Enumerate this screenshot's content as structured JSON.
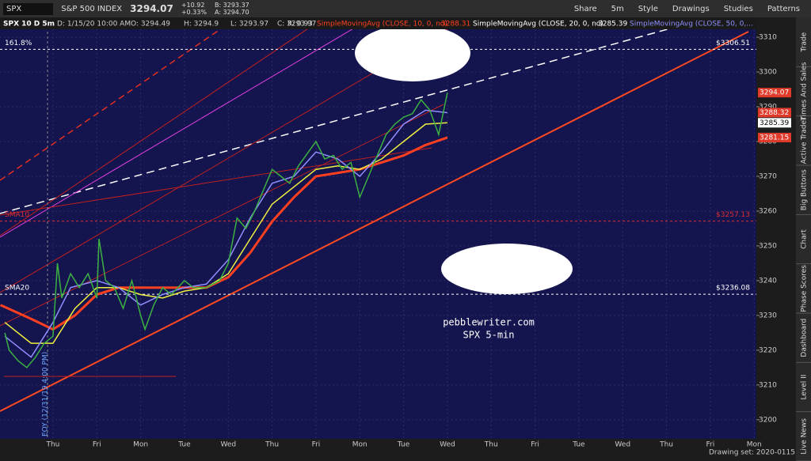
{
  "toolbar": {
    "symbol": "SPX",
    "description": "S&P 500 INDEX",
    "last": "3294.07",
    "change": "+10.92",
    "change_pct": "+0.33%",
    "bid": "B: 3293.37",
    "ask": "A: 3294.70",
    "buttons": [
      "Share",
      "5m",
      "Style",
      "Drawings",
      "Studies",
      "Patterns"
    ]
  },
  "info_bar": {
    "symbol": "SPX 10 D 5m",
    "date": "D: 1/15/20 10:00 AM",
    "open": "O: 3294.49",
    "high": "H: 3294.9",
    "low": "L: 3293.97",
    "close": "C: 3293.97",
    "range": "R: 0.93",
    "sma10_value": "3288.31",
    "sma20_value": "3285.39"
  },
  "side_tabs": [
    "Trade",
    "Times And Sales",
    "Active Trader",
    "Big Buttons",
    "Chart",
    "Phase Scores",
    "Dashboard",
    "Level II",
    "Live News"
  ],
  "footer": {
    "drawing_set": "Drawing set: 2020-0115"
  },
  "chart_data": {
    "type": "line",
    "watermark": [
      "pebblewriter.com",
      "SPX 5-min"
    ],
    "eoy_label": "EOY (12/31/19 4:00 PM)",
    "xlim": [
      -1.21,
      16.05
    ],
    "xticks": [
      {
        "value": 0,
        "label": "Thu"
      },
      {
        "value": 1,
        "label": "Fri"
      },
      {
        "value": 2,
        "label": "Mon"
      },
      {
        "value": 3,
        "label": "Tue"
      },
      {
        "value": 4,
        "label": "Wed"
      },
      {
        "value": 5,
        "label": "Thu"
      },
      {
        "value": 6,
        "label": "Fri"
      },
      {
        "value": 7,
        "label": "Mon"
      },
      {
        "value": 8,
        "label": "Tue"
      },
      {
        "value": 9,
        "label": "Wed"
      },
      {
        "value": 10,
        "label": "Thu"
      },
      {
        "value": 11,
        "label": "Fri"
      },
      {
        "value": 12,
        "label": "Tue"
      },
      {
        "value": 13,
        "label": "Wed"
      },
      {
        "value": 14,
        "label": "Thu"
      },
      {
        "value": 15,
        "label": "Fri"
      },
      {
        "value": 16,
        "label": "Mon"
      }
    ],
    "ylim": [
      3194.5,
      3315.7
    ],
    "yticks": [
      3200,
      3210,
      3220,
      3230,
      3240,
      3250,
      3260,
      3270,
      3280,
      3290,
      3300,
      3310
    ],
    "series": [
      {
        "color": "#3cb043",
        "x": [
          -1.1,
          -1,
          -0.8,
          -0.6,
          -0.4,
          -0.2,
          0,
          0.1,
          0.2,
          0.4,
          0.6,
          0.8,
          1,
          1.05,
          1.2,
          1.4,
          1.6,
          1.8,
          2,
          2.1,
          2.3,
          2.5,
          2.7,
          3,
          3.2,
          3.5,
          3.8,
          4,
          4.2,
          4.4,
          4.6,
          4.8,
          5,
          5.2,
          5.4,
          5.6,
          6,
          6.2,
          6.4,
          6.6,
          6.8,
          7,
          7.2,
          7.4,
          7.6,
          7.8,
          8,
          8.2,
          8.4,
          8.6,
          8.8,
          9
        ],
        "values": [
          3225,
          3220,
          3217,
          3215,
          3218,
          3222,
          3224,
          3245,
          3235,
          3242,
          3238,
          3242,
          3235,
          3252,
          3240,
          3238,
          3232,
          3240,
          3230,
          3226,
          3233,
          3238,
          3236,
          3240,
          3238,
          3238,
          3240,
          3245,
          3258,
          3255,
          3260,
          3266,
          3272,
          3270,
          3268,
          3273,
          3280,
          3275,
          3276,
          3272,
          3274,
          3264,
          3270,
          3276,
          3282,
          3285,
          3287,
          3288,
          3292,
          3289,
          3282,
          3294.07
        ]
      },
      {
        "name": "SimpleMovingAvg (CLOSE, 10, 0, no)",
        "color": "#8f8fff",
        "x": [
          -1.1,
          -0.5,
          0,
          0.4,
          1,
          1.5,
          2,
          2.5,
          3,
          3.5,
          4,
          4.5,
          5,
          5.5,
          6,
          6.5,
          7,
          7.5,
          8,
          8.5,
          9
        ],
        "values": [
          3224,
          3218,
          3228,
          3238,
          3240,
          3238,
          3233,
          3236,
          3238,
          3239,
          3246,
          3258,
          3268,
          3270,
          3277,
          3275,
          3270,
          3277,
          3285,
          3289,
          3288.31
        ]
      },
      {
        "name": "SimpleMovingAvg (CLOSE, 20, 0, no)",
        "color": "#f0f040",
        "x": [
          -1.1,
          -0.5,
          0,
          0.5,
          1,
          1.5,
          2,
          2.5,
          3,
          3.5,
          4,
          4.5,
          5,
          5.5,
          6,
          6.5,
          7,
          7.5,
          8,
          8.5,
          9
        ],
        "values": [
          3228,
          3222,
          3222,
          3232,
          3238,
          3238,
          3236,
          3235,
          3237,
          3238,
          3242,
          3252,
          3262,
          3267,
          3272,
          3273,
          3272,
          3275,
          3280,
          3285,
          3285.39
        ]
      },
      {
        "name": "SimpleMovingAvg (CLOSE, 50, 0,...",
        "color": "#ff4020",
        "x": [
          -1.2,
          -0.5,
          0,
          0.5,
          1,
          1.5,
          2,
          2.5,
          3,
          3.5,
          4,
          4.5,
          5,
          5.5,
          6,
          6.5,
          7,
          7.5,
          8,
          8.5,
          9
        ],
        "values": [
          3233,
          3229,
          3226,
          3230,
          3236,
          3238,
          3238,
          3238,
          3238,
          3238,
          3241,
          3248,
          3257,
          3264,
          3270,
          3271,
          3272,
          3274,
          3276,
          3279,
          3281.15
        ]
      }
    ],
    "levels": [
      {
        "label": "161.8%",
        "value": 3306.51,
        "value_label": "$3306.51",
        "color": "#ffffff"
      },
      {
        "label": "SMA10",
        "value": 3257.13,
        "value_label": "$3257.13",
        "color": "#e03030"
      },
      {
        "label": "SMA20",
        "value": 3236.08,
        "value_label": "$3236.08",
        "color": "#ffffff"
      }
    ],
    "price_badges": [
      {
        "value": 3294.07,
        "color": "#e03a2a"
      },
      {
        "value": 3288.32,
        "color": "#e03a2a"
      },
      {
        "value": 3285.39,
        "color": "#ffffff"
      },
      {
        "value": 3281.15,
        "color": "#e03a2a"
      }
    ]
  }
}
